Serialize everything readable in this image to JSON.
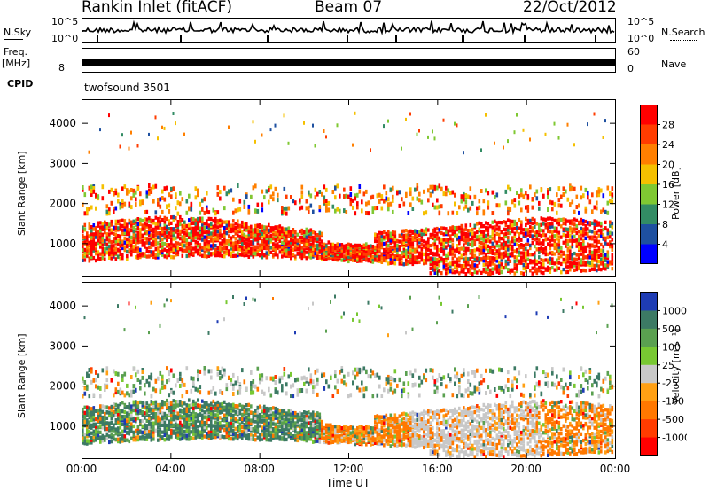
{
  "header": {
    "station": "Rankin Inlet (fitACF)",
    "beam": "Beam 07",
    "date": "22/Oct/2012"
  },
  "noise_panel": {
    "left_label": "N.Sky",
    "right_label": "N.Search",
    "left_ticks": [
      "10^5",
      "10^0"
    ],
    "right_ticks": [
      "10^5",
      "10^0"
    ]
  },
  "freq_panel": {
    "left_label_top": "Freq.",
    "left_label_unit": "[MHz]",
    "right_label": "Nave",
    "left_ticks": [
      "8"
    ],
    "right_ticks": [
      "60",
      "0"
    ]
  },
  "cpid_panel": {
    "label": "CPID",
    "program": "twofsound 3501"
  },
  "chart_data": [
    {
      "type": "heatmap",
      "ylabel": "Slant Range [km]",
      "xlabel": "",
      "yticks": [
        "1000",
        "2000",
        "3000",
        "4000"
      ],
      "ylim": [
        180,
        4600
      ],
      "colorbar": {
        "label": "Power [dB]",
        "ticks": [
          "28",
          "24",
          "20",
          "16",
          "12",
          "8",
          "4"
        ],
        "colors": [
          "#ff0000",
          "#ff3c00",
          "#ff7f00",
          "#f5c000",
          "#7fc832",
          "#328c64",
          "#1e50a0",
          "#0000ff"
        ]
      }
    },
    {
      "type": "heatmap",
      "ylabel": "Slant Range [km]",
      "xlabel": "Time UT",
      "yticks": [
        "1000",
        "2000",
        "3000",
        "4000"
      ],
      "xticks": [
        "00:00",
        "04:00",
        "08:00",
        "12:00",
        "16:00",
        "20:00",
        "00:00"
      ],
      "ylim": [
        180,
        4600
      ],
      "colorbar": {
        "label": "Velocity [m s⁻¹]",
        "ticks": [
          "1000",
          "500",
          "100",
          "25",
          "-25",
          "-100",
          "-500",
          "-1000"
        ],
        "colors": [
          "#1e3cb4",
          "#3c7a64",
          "#5aa050",
          "#78c832",
          "#c8c8c8",
          "#ffa014",
          "#ff7800",
          "#ff3c00",
          "#ff0000"
        ]
      }
    }
  ]
}
